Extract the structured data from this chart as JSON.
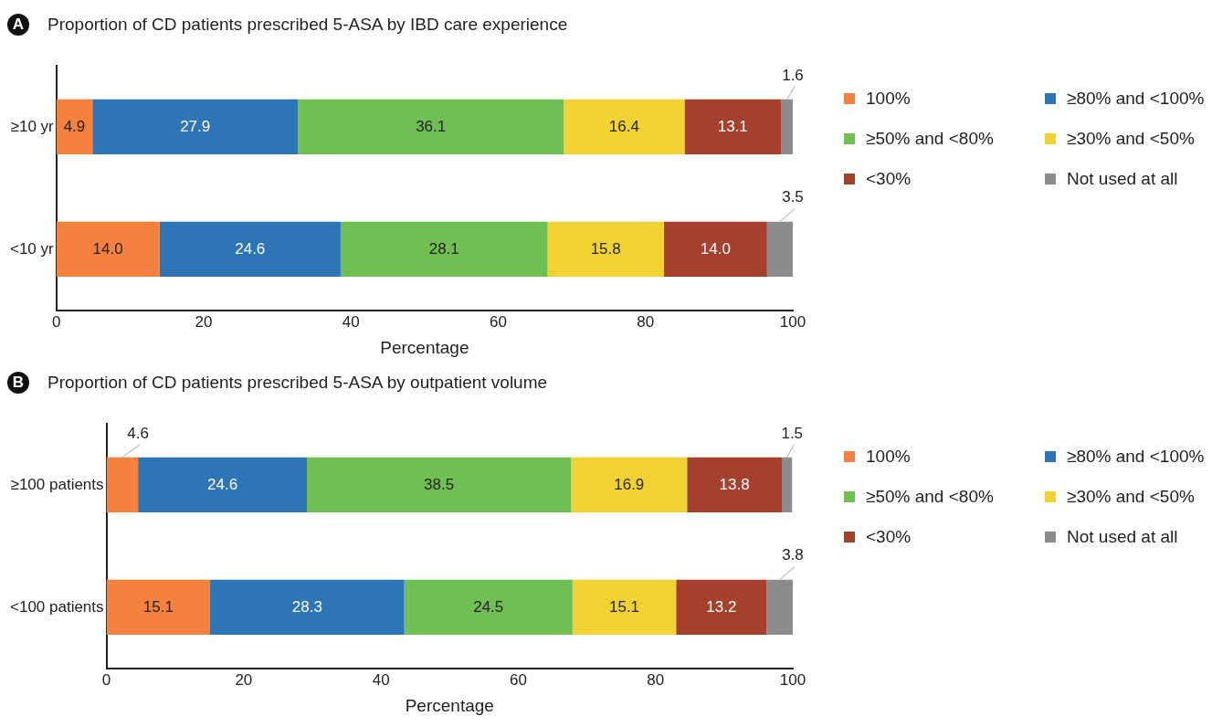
{
  "chart_data": [
    {
      "type": "bar",
      "orientation": "horizontal",
      "stacked": true,
      "title": "Proportion of CD patients prescribed 5-ASA by IBD care experience",
      "annotations": [
        "A"
      ],
      "categories": [
        "≥10 yr",
        "<10 yr"
      ],
      "xlabel": "Percentage",
      "xlim": [
        0,
        100
      ],
      "xticks": [
        0,
        20,
        40,
        60,
        80,
        100
      ],
      "grid": false,
      "legend": "right",
      "series": [
        {
          "name": "100%",
          "color": "#f4813f",
          "values": [
            4.9,
            14.0
          ],
          "value_labels": [
            "4.9",
            "14.0"
          ]
        },
        {
          "name": "≥80% and <100%",
          "color": "#2e75b6",
          "values": [
            27.9,
            24.6
          ],
          "value_labels": [
            "27.9",
            "24.6"
          ]
        },
        {
          "name": "≥50% and <80%",
          "color": "#70bf54",
          "values": [
            36.1,
            28.1
          ],
          "value_labels": [
            "36.1",
            "28.1"
          ]
        },
        {
          "name": "≥30% and <50%",
          "color": "#f2d232",
          "values": [
            16.4,
            15.8
          ],
          "value_labels": [
            "16.4",
            "15.8"
          ]
        },
        {
          "name": "<30%",
          "color": "#a5402d",
          "values": [
            13.1,
            14.0
          ],
          "value_labels": [
            "13.1",
            "14.0"
          ]
        },
        {
          "name": "Not used at all",
          "color": "#8c8c8c",
          "values": [
            1.6,
            3.5
          ],
          "value_labels": [
            "1.6",
            "3.5"
          ]
        }
      ]
    },
    {
      "type": "bar",
      "orientation": "horizontal",
      "stacked": true,
      "title": "Proportion of CD patients prescribed 5-ASA by outpatient volume",
      "annotations": [
        "B"
      ],
      "categories": [
        "≥100 patients",
        "<100 patients"
      ],
      "xlabel": "Percentage",
      "xlim": [
        0,
        100
      ],
      "xticks": [
        0,
        20,
        40,
        60,
        80,
        100
      ],
      "grid": false,
      "legend": "right",
      "series": [
        {
          "name": "100%",
          "color": "#f4813f",
          "values": [
            4.6,
            15.1
          ],
          "value_labels": [
            "4.6",
            "15.1"
          ]
        },
        {
          "name": "≥80% and <100%",
          "color": "#2e75b6",
          "values": [
            24.6,
            28.3
          ],
          "value_labels": [
            "24.6",
            "28.3"
          ]
        },
        {
          "name": "≥50% and <80%",
          "color": "#70bf54",
          "values": [
            38.5,
            24.5
          ],
          "value_labels": [
            "38.5",
            "24.5"
          ]
        },
        {
          "name": "≥30% and <50%",
          "color": "#f2d232",
          "values": [
            16.9,
            15.1
          ],
          "value_labels": [
            "16.9",
            "15.1"
          ]
        },
        {
          "name": "<30%",
          "color": "#a5402d",
          "values": [
            13.8,
            13.2
          ],
          "value_labels": [
            "13.8",
            "13.2"
          ]
        },
        {
          "name": "Not used at all",
          "color": "#8c8c8c",
          "values": [
            1.5,
            3.8
          ],
          "value_labels": [
            "1.5",
            "3.8"
          ]
        }
      ]
    }
  ]
}
